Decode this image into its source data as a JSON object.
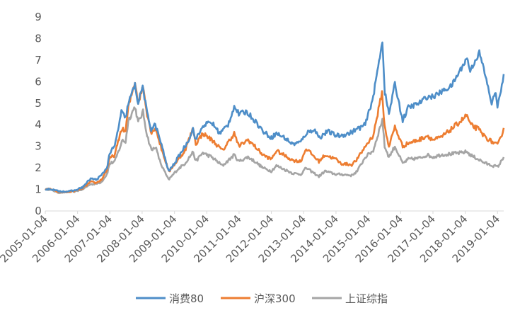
{
  "chart_data": {
    "type": "line",
    "title": "",
    "xlabel": "",
    "ylabel": "",
    "ylim": [
      0,
      9
    ],
    "y_ticks": [
      "0",
      "1",
      "2",
      "3",
      "4",
      "5",
      "6",
      "7",
      "8",
      "9"
    ],
    "x_tick_labels": [
      "2005-01-04",
      "2006-01-04",
      "2007-01-04",
      "2008-01-04",
      "2009-01-04",
      "2010-01-04",
      "2011-01-04",
      "2012-01-04",
      "2013-01-04",
      "2014-01-04",
      "2015-01-04",
      "2016-01-04",
      "2017-01-04",
      "2018-01-04",
      "2019-01-04"
    ],
    "x_range": [
      "2005-01-04",
      "2019-03-15"
    ],
    "grid": false,
    "legend_position": "bottom",
    "series": [
      {
        "name": "消费80",
        "color": "#4e8ec8",
        "points": [
          [
            "2005-01-04",
            1.0
          ],
          [
            "2005-03-01",
            1.02
          ],
          [
            "2005-06-01",
            0.92
          ],
          [
            "2005-09-01",
            0.9
          ],
          [
            "2005-12-01",
            0.95
          ],
          [
            "2006-03-01",
            1.1
          ],
          [
            "2006-06-01",
            1.5
          ],
          [
            "2006-08-01",
            1.45
          ],
          [
            "2006-10-01",
            1.65
          ],
          [
            "2006-12-01",
            2.0
          ],
          [
            "2007-01-04",
            2.7
          ],
          [
            "2007-03-01",
            3.0
          ],
          [
            "2007-05-15",
            4.6
          ],
          [
            "2007-07-01",
            4.3
          ],
          [
            "2007-08-01",
            5.0
          ],
          [
            "2007-10-15",
            5.85
          ],
          [
            "2007-11-20",
            5.0
          ],
          [
            "2008-01-10",
            5.8
          ],
          [
            "2008-03-01",
            4.5
          ],
          [
            "2008-04-15",
            3.8
          ],
          [
            "2008-06-01",
            4.0
          ],
          [
            "2008-08-01",
            3.2
          ],
          [
            "2008-10-28",
            1.85
          ],
          [
            "2008-12-01",
            2.0
          ],
          [
            "2009-02-01",
            2.4
          ],
          [
            "2009-04-01",
            2.8
          ],
          [
            "2009-06-01",
            3.2
          ],
          [
            "2009-08-01",
            3.8
          ],
          [
            "2009-09-01",
            3.3
          ],
          [
            "2009-12-01",
            4.0
          ],
          [
            "2010-03-01",
            4.1
          ],
          [
            "2010-06-01",
            3.6
          ],
          [
            "2010-09-01",
            4.0
          ],
          [
            "2010-11-10",
            4.85
          ],
          [
            "2011-01-01",
            4.5
          ],
          [
            "2011-04-01",
            4.6
          ],
          [
            "2011-07-01",
            4.2
          ],
          [
            "2011-10-01",
            3.7
          ],
          [
            "2012-01-04",
            3.4
          ],
          [
            "2012-03-01",
            3.6
          ],
          [
            "2012-06-01",
            3.4
          ],
          [
            "2012-09-01",
            3.1
          ],
          [
            "2012-12-01",
            3.2
          ],
          [
            "2013-02-01",
            3.6
          ],
          [
            "2013-05-01",
            3.8
          ],
          [
            "2013-07-01",
            3.4
          ],
          [
            "2013-10-01",
            3.7
          ],
          [
            "2014-01-04",
            3.5
          ],
          [
            "2014-03-01",
            3.5
          ],
          [
            "2014-06-01",
            3.6
          ],
          [
            "2014-09-01",
            3.8
          ],
          [
            "2014-12-01",
            4.0
          ],
          [
            "2015-03-01",
            5.3
          ],
          [
            "2015-06-12",
            7.9
          ],
          [
            "2015-07-10",
            5.5
          ],
          [
            "2015-08-26",
            4.5
          ],
          [
            "2015-11-01",
            5.9
          ],
          [
            "2016-01-28",
            4.2
          ],
          [
            "2016-04-01",
            4.8
          ],
          [
            "2016-08-01",
            5.0
          ],
          [
            "2016-11-01",
            5.3
          ],
          [
            "2017-01-04",
            5.3
          ],
          [
            "2017-04-01",
            5.5
          ],
          [
            "2017-08-01",
            5.8
          ],
          [
            "2017-12-01",
            6.7
          ],
          [
            "2018-01-25",
            7.1
          ],
          [
            "2018-03-01",
            6.5
          ],
          [
            "2018-06-12",
            7.35
          ],
          [
            "2018-08-01",
            6.6
          ],
          [
            "2018-10-30",
            5.0
          ],
          [
            "2018-12-15",
            5.5
          ],
          [
            "2019-01-04",
            4.9
          ],
          [
            "2019-02-01",
            5.3
          ],
          [
            "2019-03-15",
            6.35
          ]
        ]
      },
      {
        "name": "沪深300",
        "color": "#ed7d31",
        "points": [
          [
            "2005-01-04",
            1.0
          ],
          [
            "2005-03-01",
            1.02
          ],
          [
            "2005-06-01",
            0.88
          ],
          [
            "2005-09-01",
            0.88
          ],
          [
            "2005-12-01",
            0.92
          ],
          [
            "2006-03-01",
            1.05
          ],
          [
            "2006-06-01",
            1.35
          ],
          [
            "2006-08-01",
            1.3
          ],
          [
            "2006-10-01",
            1.45
          ],
          [
            "2006-12-01",
            1.9
          ],
          [
            "2007-01-04",
            2.45
          ],
          [
            "2007-03-01",
            2.6
          ],
          [
            "2007-05-15",
            3.8
          ],
          [
            "2007-07-01",
            3.7
          ],
          [
            "2007-08-01",
            4.8
          ],
          [
            "2007-10-16",
            6.0
          ],
          [
            "2007-11-20",
            5.0
          ],
          [
            "2008-01-14",
            5.8
          ],
          [
            "2008-03-01",
            4.5
          ],
          [
            "2008-04-20",
            3.6
          ],
          [
            "2008-06-01",
            3.9
          ],
          [
            "2008-08-01",
            3.0
          ],
          [
            "2008-11-04",
            1.8
          ],
          [
            "2008-12-01",
            2.0
          ],
          [
            "2009-02-01",
            2.3
          ],
          [
            "2009-05-01",
            2.8
          ],
          [
            "2009-08-04",
            3.85
          ],
          [
            "2009-09-01",
            3.1
          ],
          [
            "2009-11-20",
            3.6
          ],
          [
            "2010-03-01",
            3.3
          ],
          [
            "2010-07-01",
            2.8
          ],
          [
            "2010-11-10",
            3.6
          ],
          [
            "2011-01-01",
            3.0
          ],
          [
            "2011-04-15",
            3.3
          ],
          [
            "2011-07-01",
            3.0
          ],
          [
            "2011-10-01",
            2.6
          ],
          [
            "2012-01-04",
            2.4
          ],
          [
            "2012-03-01",
            2.8
          ],
          [
            "2012-09-01",
            2.35
          ],
          [
            "2012-12-01",
            2.3
          ],
          [
            "2013-02-01",
            2.9
          ],
          [
            "2013-06-25",
            2.3
          ],
          [
            "2013-09-01",
            2.6
          ],
          [
            "2014-01-04",
            2.4
          ],
          [
            "2014-03-01",
            2.2
          ],
          [
            "2014-07-01",
            2.15
          ],
          [
            "2014-09-01",
            2.4
          ],
          [
            "2014-12-01",
            3.0
          ],
          [
            "2015-03-01",
            3.5
          ],
          [
            "2015-06-08",
            5.5
          ],
          [
            "2015-07-08",
            3.9
          ],
          [
            "2015-08-26",
            3.0
          ],
          [
            "2015-11-01",
            3.9
          ],
          [
            "2016-01-28",
            3.0
          ],
          [
            "2016-04-01",
            3.15
          ],
          [
            "2016-08-01",
            3.3
          ],
          [
            "2016-11-01",
            3.5
          ],
          [
            "2017-01-04",
            3.3
          ],
          [
            "2017-04-01",
            3.4
          ],
          [
            "2017-08-01",
            3.8
          ],
          [
            "2017-11-20",
            4.2
          ],
          [
            "2018-01-24",
            4.45
          ],
          [
            "2018-03-01",
            4.0
          ],
          [
            "2018-06-01",
            3.8
          ],
          [
            "2018-08-01",
            3.5
          ],
          [
            "2018-10-01",
            3.3
          ],
          [
            "2019-01-04",
            3.05
          ],
          [
            "2019-02-01",
            3.3
          ],
          [
            "2019-03-15",
            3.85
          ]
        ]
      },
      {
        "name": "上证综指",
        "color": "#a5a5a5",
        "points": [
          [
            "2005-01-04",
            1.0
          ],
          [
            "2005-03-01",
            1.0
          ],
          [
            "2005-06-01",
            0.85
          ],
          [
            "2005-09-01",
            0.87
          ],
          [
            "2005-12-01",
            0.9
          ],
          [
            "2006-03-01",
            1.0
          ],
          [
            "2006-06-01",
            1.25
          ],
          [
            "2006-08-01",
            1.25
          ],
          [
            "2006-10-01",
            1.35
          ],
          [
            "2006-12-01",
            1.7
          ],
          [
            "2007-01-04",
            2.2
          ],
          [
            "2007-03-01",
            2.3
          ],
          [
            "2007-05-29",
            3.3
          ],
          [
            "2007-07-01",
            3.2
          ],
          [
            "2007-08-01",
            4.2
          ],
          [
            "2007-10-16",
            4.85
          ],
          [
            "2007-11-20",
            4.1
          ],
          [
            "2008-01-14",
            4.6
          ],
          [
            "2008-03-01",
            3.5
          ],
          [
            "2008-04-20",
            2.8
          ],
          [
            "2008-06-01",
            3.0
          ],
          [
            "2008-08-01",
            2.2
          ],
          [
            "2008-10-28",
            1.45
          ],
          [
            "2008-12-01",
            1.6
          ],
          [
            "2009-02-01",
            1.9
          ],
          [
            "2009-05-01",
            2.2
          ],
          [
            "2009-08-04",
            2.75
          ],
          [
            "2009-09-01",
            2.3
          ],
          [
            "2009-11-20",
            2.7
          ],
          [
            "2010-03-01",
            2.5
          ],
          [
            "2010-07-01",
            2.1
          ],
          [
            "2010-11-10",
            2.6
          ],
          [
            "2011-01-01",
            2.3
          ],
          [
            "2011-04-15",
            2.5
          ],
          [
            "2011-07-01",
            2.3
          ],
          [
            "2011-10-01",
            2.0
          ],
          [
            "2012-01-04",
            1.85
          ],
          [
            "2012-03-01",
            2.1
          ],
          [
            "2012-09-01",
            1.75
          ],
          [
            "2012-12-01",
            1.7
          ],
          [
            "2013-02-01",
            2.0
          ],
          [
            "2013-06-25",
            1.6
          ],
          [
            "2013-09-01",
            1.85
          ],
          [
            "2014-01-04",
            1.7
          ],
          [
            "2014-03-01",
            1.7
          ],
          [
            "2014-07-01",
            1.65
          ],
          [
            "2014-09-01",
            1.85
          ],
          [
            "2014-12-01",
            2.5
          ],
          [
            "2015-03-01",
            2.8
          ],
          [
            "2015-06-12",
            4.25
          ],
          [
            "2015-07-08",
            3.0
          ],
          [
            "2015-08-26",
            2.5
          ],
          [
            "2015-11-01",
            3.0
          ],
          [
            "2016-01-28",
            2.2
          ],
          [
            "2016-04-01",
            2.4
          ],
          [
            "2016-08-01",
            2.45
          ],
          [
            "2016-11-01",
            2.6
          ],
          [
            "2017-01-04",
            2.5
          ],
          [
            "2017-04-01",
            2.6
          ],
          [
            "2017-08-01",
            2.65
          ],
          [
            "2017-11-20",
            2.7
          ],
          [
            "2018-01-24",
            2.75
          ],
          [
            "2018-03-01",
            2.6
          ],
          [
            "2018-06-01",
            2.4
          ],
          [
            "2018-08-01",
            2.25
          ],
          [
            "2018-10-01",
            2.15
          ],
          [
            "2019-01-04",
            2.05
          ],
          [
            "2019-02-01",
            2.2
          ],
          [
            "2019-03-15",
            2.5
          ]
        ]
      }
    ]
  }
}
